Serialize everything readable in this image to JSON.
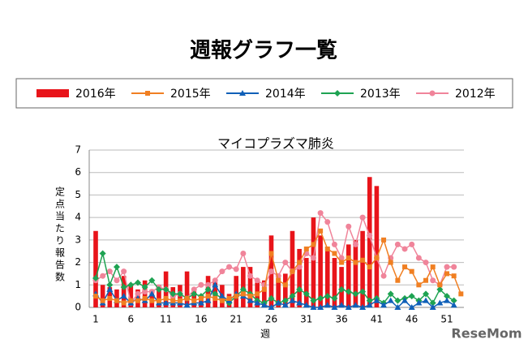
{
  "chart_data": {
    "type": "bar-line",
    "page_title": "週報グラフ一覧",
    "title": "マイコプラズマ肺炎",
    "xlabel": "週",
    "ylabel": "定点当たり報告数",
    "watermark": "ReseMom",
    "categories": [
      "1",
      null,
      null,
      null,
      null,
      "6",
      null,
      null,
      null,
      null,
      "11",
      null,
      null,
      null,
      null,
      "16",
      null,
      null,
      null,
      null,
      "21",
      null,
      null,
      null,
      null,
      "26",
      null,
      null,
      null,
      null,
      "31",
      null,
      null,
      null,
      null,
      "36",
      null,
      null,
      null,
      null,
      "41",
      null,
      null,
      null,
      null,
      "46",
      null,
      null,
      null,
      null,
      "51",
      null,
      null
    ],
    "ylim": [
      0,
      7
    ],
    "yticks": [
      0,
      1,
      2,
      3,
      4,
      5,
      6,
      7
    ],
    "grid": true,
    "series": [
      {
        "name": "2016年",
        "kind": "bar",
        "color": "#e8141a",
        "values": [
          3.4,
          1.0,
          0.9,
          0.8,
          1.4,
          1.0,
          0.8,
          1.2,
          0.8,
          1.0,
          1.6,
          0.9,
          1.0,
          1.6,
          0.8,
          0.5,
          1.4,
          1.2,
          1.0,
          0.6,
          1.4,
          1.8,
          1.8,
          1.1,
          1.2,
          3.2,
          1.4,
          1.5,
          3.4,
          2.6,
          2.2,
          4.0,
          3.2,
          2.6,
          2.2,
          1.8,
          2.8,
          3.0,
          3.4,
          5.8,
          5.4,
          null,
          null,
          null,
          null,
          null,
          null,
          null,
          null,
          null,
          null,
          null,
          null
        ]
      },
      {
        "name": "2015年",
        "kind": "line",
        "marker": "square",
        "color": "#f07f22",
        "values": [
          0.5,
          0.3,
          0.4,
          0.3,
          0.2,
          0.3,
          0.3,
          0.4,
          0.3,
          0.3,
          0.4,
          0.3,
          0.3,
          0.4,
          0.3,
          0.4,
          0.5,
          0.4,
          0.3,
          0.4,
          0.5,
          0.6,
          0.5,
          0.6,
          0.8,
          2.4,
          1.2,
          1.0,
          1.6,
          2.0,
          2.6,
          2.8,
          3.4,
          2.6,
          2.4,
          2.0,
          2.2,
          2.0,
          2.1,
          1.8,
          2.2,
          3.0,
          2.0,
          1.2,
          1.8,
          1.6,
          1.0,
          1.2,
          1.8,
          1.0,
          1.5,
          1.4,
          0.6
        ]
      },
      {
        "name": "2014年",
        "kind": "line",
        "marker": "triangle",
        "color": "#1060b8",
        "values": [
          0.6,
          0.2,
          0.8,
          0.3,
          0.5,
          0.2,
          0.4,
          0.3,
          0.6,
          0.2,
          0.2,
          0.2,
          0.2,
          0.1,
          0.2,
          0.2,
          0.3,
          1.0,
          0.5,
          0.3,
          0.6,
          0.5,
          0.3,
          0.2,
          0.1,
          0.0,
          0.2,
          0.1,
          0.3,
          0.2,
          0.1,
          0.0,
          0.0,
          0.1,
          0.0,
          0.1,
          0.0,
          0.1,
          0.0,
          0.1,
          0.3,
          0.1,
          0.3,
          0.0,
          0.3,
          0.0,
          0.2,
          0.3,
          0.0,
          0.2,
          0.3,
          0.1,
          null
        ]
      },
      {
        "name": "2013年",
        "kind": "line",
        "marker": "diamond",
        "color": "#1ea352",
        "values": [
          1.3,
          2.4,
          1.0,
          1.8,
          0.9,
          1.0,
          1.1,
          0.9,
          1.2,
          0.8,
          0.8,
          0.6,
          0.6,
          0.4,
          0.6,
          0.5,
          0.8,
          0.6,
          0.4,
          0.2,
          0.5,
          0.8,
          0.6,
          0.3,
          0.2,
          0.4,
          0.2,
          0.3,
          0.5,
          0.8,
          0.6,
          0.3,
          0.4,
          0.5,
          0.4,
          0.8,
          0.7,
          0.6,
          0.7,
          0.3,
          0.4,
          0.2,
          0.6,
          0.3,
          0.4,
          0.5,
          0.3,
          0.6,
          0.2,
          0.8,
          0.5,
          0.3,
          null
        ]
      },
      {
        "name": "2012年",
        "kind": "line",
        "marker": "circle",
        "color": "#f0849a",
        "values": [
          1.2,
          1.4,
          1.6,
          1.2,
          1.6,
          0.2,
          0.6,
          0.7,
          0.7,
          0.9,
          0.8,
          0.5,
          0.6,
          0.4,
          0.8,
          1.0,
          1.0,
          1.2,
          1.6,
          1.8,
          1.7,
          2.4,
          1.4,
          1.2,
          1.0,
          1.6,
          1.4,
          2.0,
          1.6,
          1.8,
          2.4,
          2.2,
          4.2,
          3.8,
          2.8,
          2.2,
          3.6,
          2.8,
          4.0,
          3.2,
          2.2,
          1.4,
          2.2,
          2.8,
          2.6,
          2.8,
          2.2,
          2.0,
          1.2,
          1.0,
          1.8,
          1.8,
          null
        ]
      }
    ]
  }
}
